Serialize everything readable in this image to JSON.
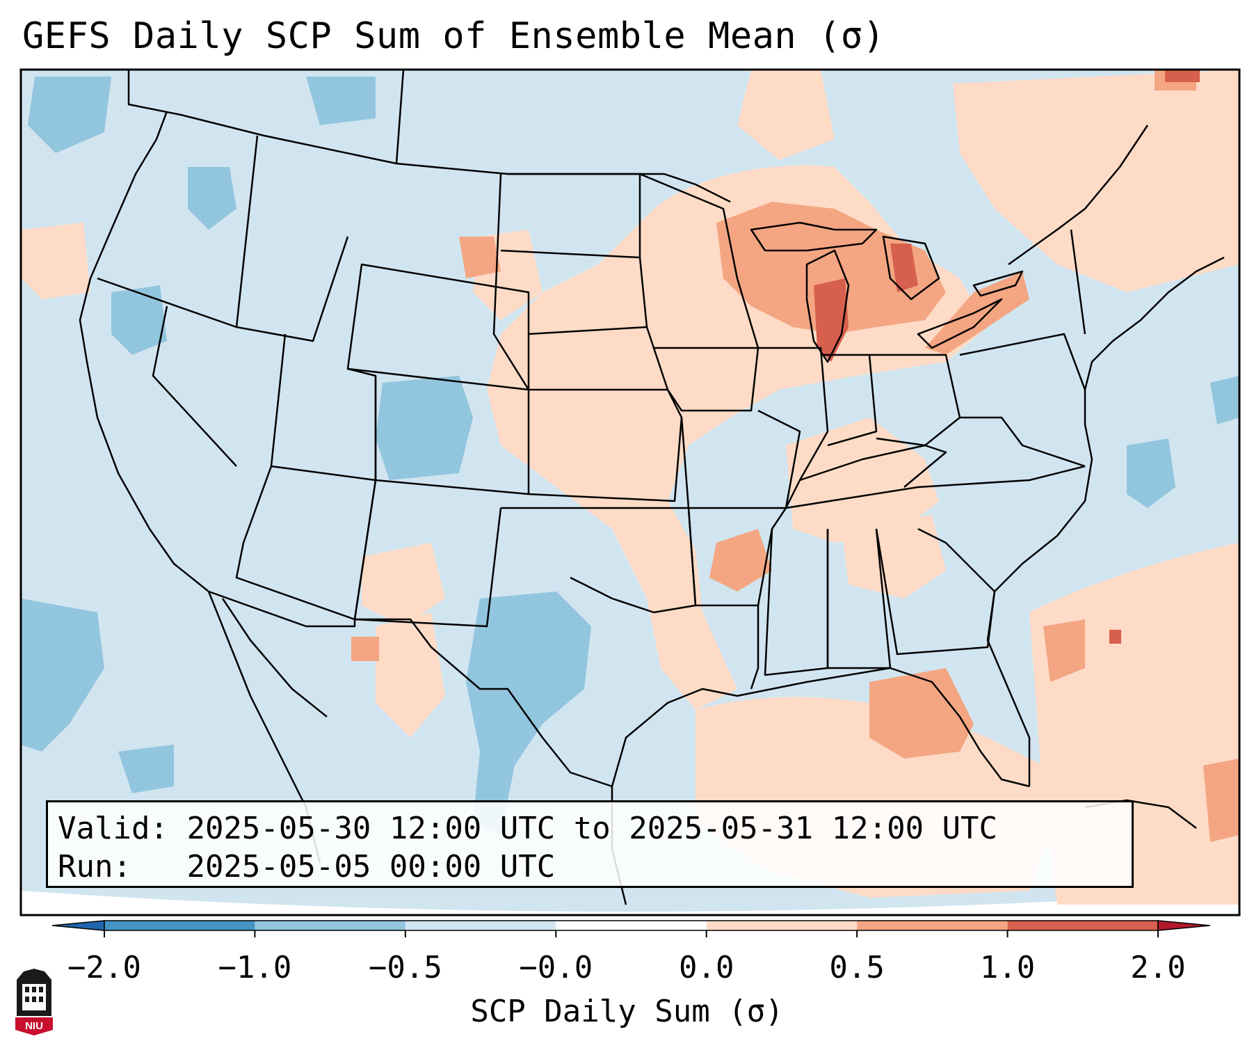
{
  "title": "GEFS Daily SCP Sum of Ensemble Mean (σ)",
  "info": {
    "valid_label": "Valid:",
    "valid_value": "2025-05-30 12:00 UTC to 2025-05-31 12:00 UTC",
    "run_label": "Run:",
    "run_value": "2025-05-05 00:00 UTC"
  },
  "colorbar": {
    "label": "SCP Daily Sum (σ)",
    "ticks": [
      "−2.0",
      "−1.0",
      "−0.5",
      "−0.0",
      "0.0",
      "0.5",
      "1.0",
      "2.0"
    ],
    "colors": [
      "#4393c3",
      "#92c5de",
      "#d1e5f0",
      "#fbfcfd",
      "#fddbc7",
      "#f4a582",
      "#d6604d"
    ],
    "extend_low": "#2166ac",
    "extend_high": "#b2182b"
  },
  "legend_colors": {
    "ocean_base": "#d1e5f0",
    "warm_light": "#fddbc7",
    "warm_mid": "#f4a582",
    "warm_high": "#d6604d",
    "warm_max": "#b2182b",
    "cool_mid": "#92c5de"
  },
  "logo": {
    "text": "NIU",
    "color": "#c8102e"
  }
}
